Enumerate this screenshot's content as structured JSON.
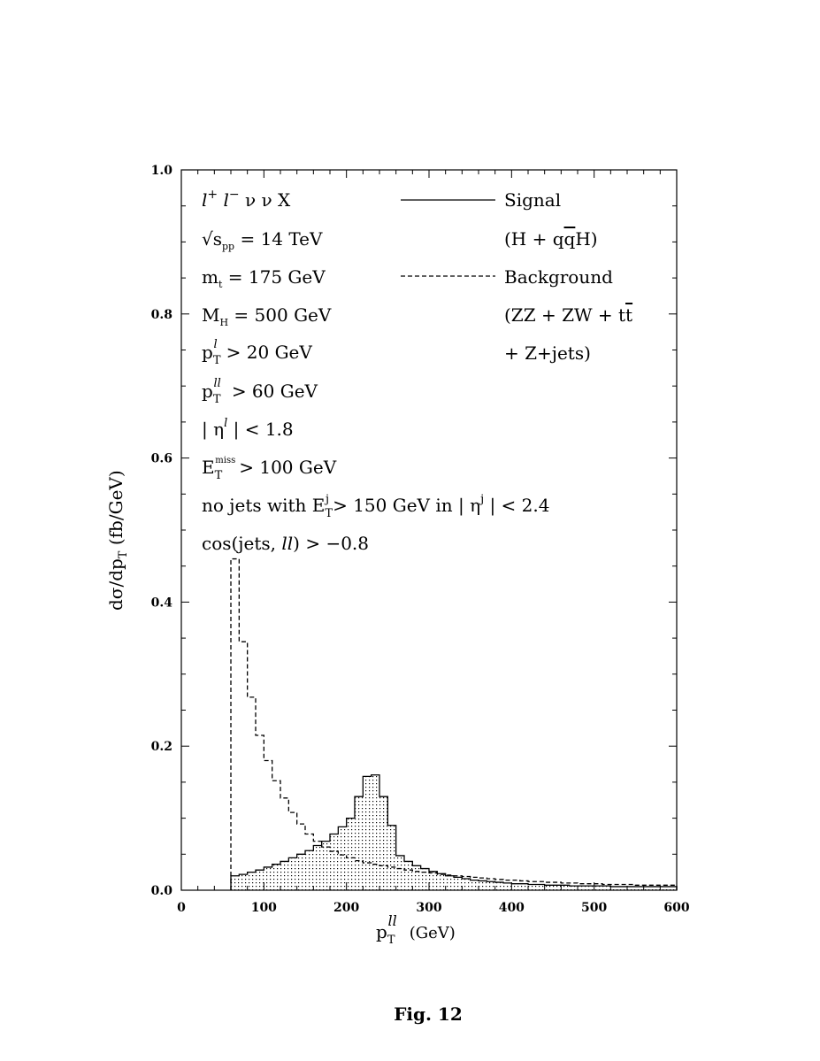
{
  "chart_data": {
    "type": "histogram",
    "caption": "Fig. 12",
    "xlabel": "p_T^{ll} (GeV)",
    "ylabel": "dσ/dp_T (fb/GeV)",
    "xlim": [
      0,
      600
    ],
    "ylim": [
      0,
      1.0
    ],
    "x_ticks": [
      "0",
      "100",
      "200",
      "300",
      "400",
      "500",
      "600"
    ],
    "y_ticks": [
      "0.0",
      "0.2",
      "0.4",
      "0.6",
      "0.8",
      "1.0"
    ],
    "grid": false,
    "bin_width": 10,
    "x": [
      60,
      70,
      80,
      90,
      100,
      110,
      120,
      130,
      140,
      150,
      160,
      170,
      180,
      190,
      200,
      210,
      220,
      230,
      240,
      250,
      260,
      270,
      280,
      290,
      300,
      310,
      320,
      330,
      340,
      350,
      360,
      370,
      380,
      390,
      400,
      410,
      420,
      430,
      440,
      450,
      460,
      470,
      480,
      490,
      500,
      510,
      520,
      530,
      540,
      550,
      560,
      570,
      580,
      590
    ],
    "series": [
      {
        "name": "Signal",
        "style": "solid, dotted fill",
        "values": [
          0.02,
          0.022,
          0.025,
          0.028,
          0.032,
          0.036,
          0.04,
          0.045,
          0.05,
          0.055,
          0.062,
          0.068,
          0.078,
          0.088,
          0.1,
          0.13,
          0.158,
          0.16,
          0.13,
          0.09,
          0.048,
          0.04,
          0.034,
          0.03,
          0.026,
          0.023,
          0.02,
          0.018,
          0.016,
          0.014,
          0.013,
          0.012,
          0.011,
          0.01,
          0.009,
          0.009,
          0.008,
          0.008,
          0.007,
          0.007,
          0.007,
          0.006,
          0.006,
          0.006,
          0.006,
          0.006,
          0.005,
          0.005,
          0.005,
          0.005,
          0.005,
          0.005,
          0.005,
          0.005
        ]
      },
      {
        "name": "Background",
        "style": "dashed",
        "values": [
          0.46,
          0.345,
          0.268,
          0.215,
          0.18,
          0.152,
          0.128,
          0.108,
          0.092,
          0.078,
          0.068,
          0.06,
          0.054,
          0.049,
          0.045,
          0.041,
          0.038,
          0.036,
          0.034,
          0.032,
          0.03,
          0.028,
          0.026,
          0.025,
          0.024,
          0.022,
          0.021,
          0.02,
          0.019,
          0.018,
          0.017,
          0.016,
          0.015,
          0.014,
          0.014,
          0.013,
          0.012,
          0.012,
          0.011,
          0.011,
          0.01,
          0.01,
          0.009,
          0.009,
          0.009,
          0.008,
          0.008,
          0.008,
          0.008,
          0.007,
          0.007,
          0.007,
          0.007,
          0.007
        ]
      }
    ],
    "legend": {
      "placement": "top-right",
      "entries": [
        {
          "name": "Signal",
          "desc": "(H + qq̄H)"
        },
        {
          "name": "Background",
          "desc_lines": [
            "(ZZ + ZW + tt̄",
            "+ Z+jets)"
          ]
        }
      ]
    },
    "annotations": [
      "l+ l− ν ν X",
      "√s_pp = 14 TeV",
      "m_t = 175 GeV",
      "M_H = 500 GeV",
      "p_T^l > 20 GeV",
      "p_T^ll > 60 GeV",
      "|η^l| < 1.8",
      "E_T^miss > 100 GeV",
      "no jets with E_T^j > 150 GeV in |η^j| < 2.4",
      "cos(jets, ll) > −0.8"
    ],
    "colors": {
      "axes": "#000000",
      "signal": "#000000",
      "background": "#000000"
    }
  }
}
